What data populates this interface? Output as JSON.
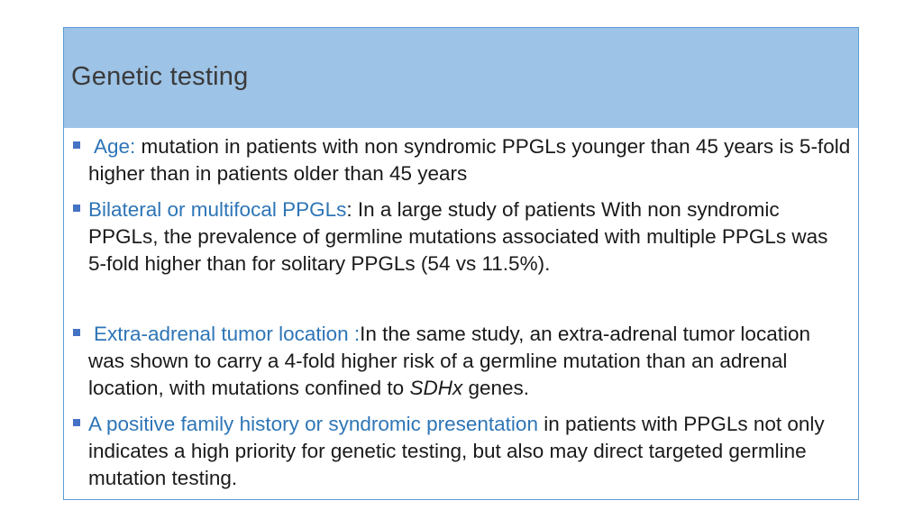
{
  "slide": {
    "title": "Genetic testing",
    "bullets": [
      {
        "label": "Age:",
        "text": " mutation in patients with non syndromic PPGLs younger than 45 years is 5-fold higher than in patients older than 45 years"
      },
      {
        "label": "Bilateral or multifocal PPGLs",
        "text": ": In a large study of patients With non syndromic PPGLs, the prevalence of germline mutations associated with multiple PPGLs was 5-fold higher than for solitary PPGLs (54 vs 11.5%)."
      },
      {
        "label": "Extra-adrenal tumor location :",
        "text_before": "In the same study, an extra-adrenal tumor location was shown to carry a 4-fold higher risk of a germline mutation than an adrenal location, with mutations confined to ",
        "italic": "SDHx",
        "text_after": " genes."
      },
      {
        "label": "A positive family history or syndromic presentation",
        "text": " in patients with PPGLs not only indicates a high priority for genetic testing, but also may direct targeted germline mutation testing."
      }
    ]
  },
  "colors": {
    "title_bar": "#9dc3e6",
    "accent_text": "#2e75b6",
    "bullet_marker": "#4472c4",
    "frame_border": "#5b9bd5"
  }
}
